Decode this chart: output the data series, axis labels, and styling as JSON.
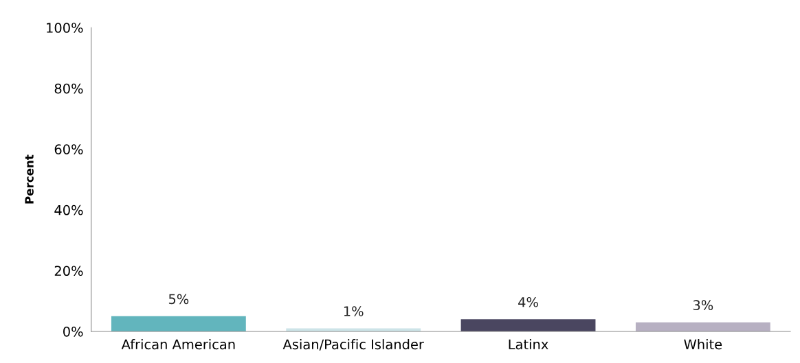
{
  "chart_data": {
    "type": "bar",
    "ylabel": "Percent",
    "categories": [
      "African American",
      "Asian/Pacific Islander",
      "Latinx",
      "White"
    ],
    "values": [
      5,
      1,
      4,
      3
    ],
    "colors": [
      "#62b5bd",
      "#cde4e8",
      "#4a4660",
      "#b7b0c2"
    ],
    "value_labels": [
      "5%",
      "1%",
      "4%",
      "3%"
    ],
    "ylim": [
      0,
      100
    ],
    "yticks": [
      {
        "value": 0,
        "label": "0%"
      },
      {
        "value": 20,
        "label": "20%"
      },
      {
        "value": 40,
        "label": "40%"
      },
      {
        "value": 60,
        "label": "60%"
      },
      {
        "value": 80,
        "label": "80%"
      },
      {
        "value": 100,
        "label": "100%"
      }
    ],
    "grid": false,
    "legend": false
  }
}
